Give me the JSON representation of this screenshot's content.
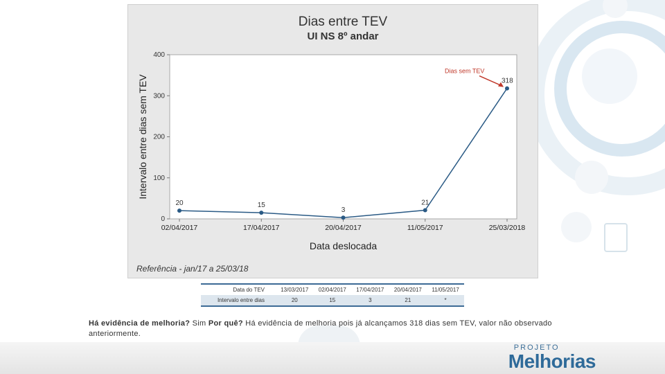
{
  "chart_data": {
    "type": "line",
    "title": "Dias entre TEV",
    "subtitle": "UI NS 8º andar",
    "xlabel": "Data deslocada",
    "ylabel": "Intervalo entre dias sem TEV",
    "categories": [
      "02/04/2017",
      "17/04/2017",
      "20/04/2017",
      "11/05/2017",
      "25/03/2018"
    ],
    "values": [
      20,
      15,
      3,
      21,
      318
    ],
    "point_labels": [
      "20",
      "15",
      "3",
      "21",
      "318"
    ],
    "ylim": [
      0,
      400
    ],
    "yticks": [
      "0",
      "100",
      "200",
      "300",
      "400"
    ],
    "annotation": "Dias sem TEV",
    "annotation_color": "#c0392b",
    "line_color": "#2a5a85",
    "grid": false,
    "note": "Referência - jan/17 a 25/03/18"
  },
  "table": {
    "row1": [
      "Data do TEV",
      "13/03/2017",
      "02/04/2017",
      "17/04/2017",
      "20/04/2017",
      "11/05/2017"
    ],
    "row2": [
      "Intervalo entre dias",
      "20",
      "15",
      "3",
      "21",
      "*"
    ]
  },
  "caption": {
    "q1": "Há evidência de melhoria?",
    "a1": "Sim",
    "q2": "Por quê?",
    "a2": "Há evidência de melhoria pois já alcançamos 318 dias sem TEV, valor não observado anteriormente."
  },
  "logo": {
    "top": "PROJETO",
    "main": "Melhorias"
  }
}
